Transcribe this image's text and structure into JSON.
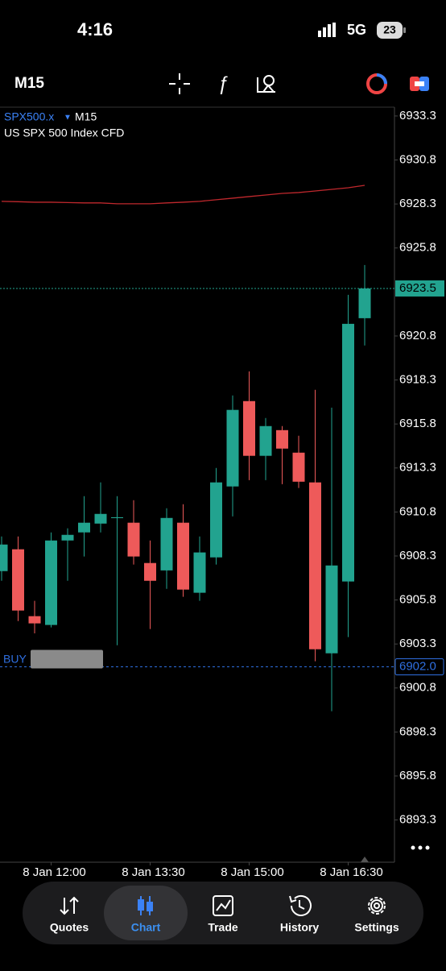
{
  "status_bar": {
    "time": "4:16",
    "network": "5G",
    "battery": "23"
  },
  "toolbar": {
    "timeframe": "M15"
  },
  "chart_data": {
    "type": "candlestick",
    "symbol": "SPX500.x",
    "timeframe": "M15",
    "description": "US SPX 500 Index CFD",
    "categories": [
      null,
      null,
      null,
      "8 Jan 12:00",
      null,
      null,
      null,
      null,
      null,
      "8 Jan 13:30",
      null,
      null,
      null,
      null,
      null,
      "8 Jan 15:00",
      null,
      null,
      null,
      null,
      null,
      "8 Jan 16:30",
      null
    ],
    "open": [
      6907.44,
      6908.68,
      6904.88,
      6904.38,
      6909.18,
      6909.64,
      6910.14,
      6910.45,
      6910.19,
      6907.9,
      6907.48,
      6910.19,
      6906.21,
      6908.22,
      6912.25,
      6917.1,
      6913.99,
      6915.45,
      6914.17,
      6912.48,
      6902.77,
      6906.85,
      6921.81
    ],
    "high": [
      6909.41,
      6909.41,
      6905.75,
      6909.64,
      6909.87,
      6911.7,
      6912.48,
      6911.7,
      6911.47,
      6909.18,
      6911.01,
      6911.24,
      6909.41,
      6913.3,
      6917.42,
      6918.79,
      6916.14,
      6915.68,
      6915.13,
      6917.74,
      6916.73,
      6923.14,
      6924.83
    ],
    "low": [
      6906.89,
      6904.6,
      6903.9,
      6904.24,
      6906.89,
      6908.27,
      6909.64,
      6903.23,
      6907.81,
      6904.15,
      6906.43,
      6905.98,
      6905.75,
      6907.81,
      6910.55,
      6912.61,
      6912.61,
      6912.38,
      6912.16,
      6902.32,
      6899.48,
      6903.69,
      6920.26
    ],
    "close": [
      6908.95,
      6905.2,
      6904.47,
      6909.18,
      6909.5,
      6910.19,
      6910.69,
      6910.5,
      6908.27,
      6906.89,
      6910.46,
      6906.39,
      6908.5,
      6912.48,
      6916.6,
      6913.99,
      6915.68,
      6914.4,
      6912.52,
      6903.0,
      6907.76,
      6921.49,
      6923.5
    ],
    "up_color": "#22a38f",
    "down_color": "#ee5a5a",
    "moving_average": {
      "color": "#c0282d",
      "values": [
        6928.45,
        6928.43,
        6928.4,
        6928.4,
        6928.38,
        6928.36,
        6928.36,
        6928.31,
        6928.31,
        6928.31,
        6928.36,
        6928.4,
        6928.45,
        6928.54,
        6928.63,
        6928.72,
        6928.81,
        6928.9,
        6928.95,
        6929.04,
        6929.13,
        6929.22,
        6929.36
      ]
    },
    "ylim": [
      6890.9,
      6933.8
    ],
    "yticks": [
      6933.3,
      6930.8,
      6928.3,
      6925.8,
      6920.8,
      6918.3,
      6915.8,
      6913.3,
      6910.8,
      6908.3,
      6905.8,
      6903.3,
      6900.8,
      6898.3,
      6895.8,
      6893.3
    ],
    "current_price": 6923.5,
    "current_price_color": "#22a38f",
    "buy_price": {
      "value": 6902,
      "label": "6902.0"
    },
    "buy_color": "#2f6fe0",
    "buy_label": "BUY"
  },
  "tab_bar": {
    "tabs": [
      "Quotes",
      "Chart",
      "Trade",
      "History",
      "Settings"
    ],
    "active_index": 1
  }
}
